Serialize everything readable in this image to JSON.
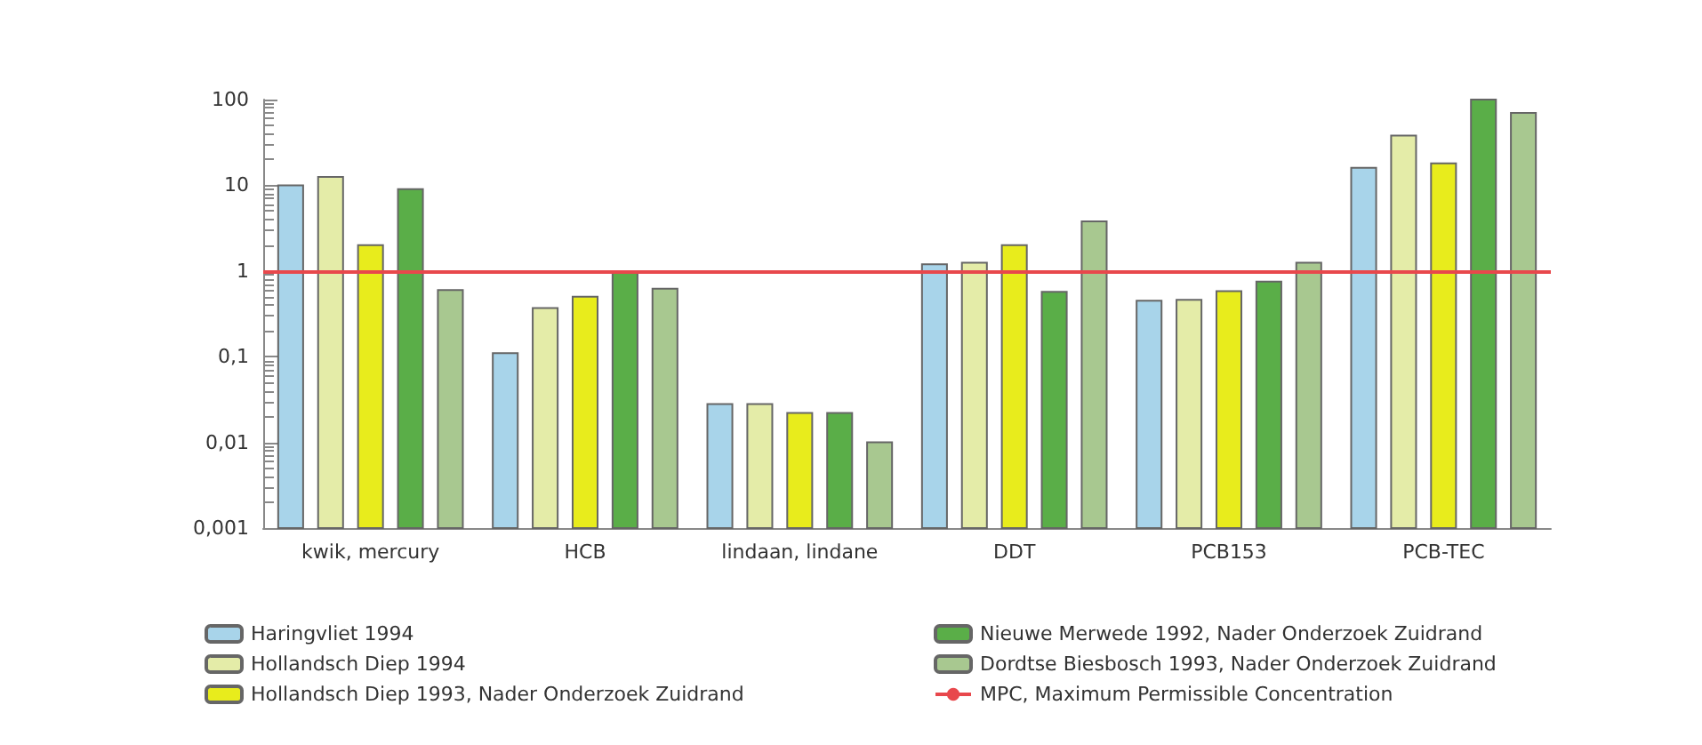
{
  "chart_data": {
    "type": "bar",
    "categories": [
      "kwik, mercury",
      "HCB",
      "lindaan, lindane",
      "DDT",
      "PCB153",
      "PCB-TEC"
    ],
    "series": [
      {
        "name": "Haringvliet 1994",
        "color": "#a8d4ea",
        "values": [
          10,
          0.11,
          0.028,
          1.2,
          0.45,
          16
        ]
      },
      {
        "name": "Hollandsch Diep 1994",
        "color": "#e4eca8",
        "values": [
          12.5,
          0.37,
          0.028,
          1.25,
          0.46,
          38
        ]
      },
      {
        "name": "Hollandsch Diep 1993, Nader Onderzoek Zuidrand",
        "color": "#e8ec1c",
        "values": [
          2,
          0.5,
          0.022,
          2,
          0.58,
          18
        ]
      },
      {
        "name": "Nieuwe Merwede 1992, Nader Onderzoek Zuidrand",
        "color": "#5aae48",
        "values": [
          9,
          0.95,
          0.022,
          0.57,
          0.75,
          100
        ]
      },
      {
        "name": "Dordtse Biesbosch 1993, Nader Onderzoek Zuidrand",
        "color": "#a8c890",
        "values": [
          0.6,
          0.62,
          0.01,
          3.8,
          1.25,
          70
        ]
      }
    ],
    "log": "y",
    "ylim": [
      0.001,
      100
    ],
    "yticks": [
      {
        "value": 0.001,
        "label": "0,001"
      },
      {
        "value": 0.01,
        "label": "0,01"
      },
      {
        "value": 0.1,
        "label": "0,1"
      },
      1,
      10,
      100
    ],
    "ref_lines": [
      {
        "axis": "y",
        "value": 1,
        "label": "MPC, Maximum Permissible Concentration",
        "color": "#e8484c"
      }
    ],
    "legend": "bottom",
    "grid": false
  }
}
